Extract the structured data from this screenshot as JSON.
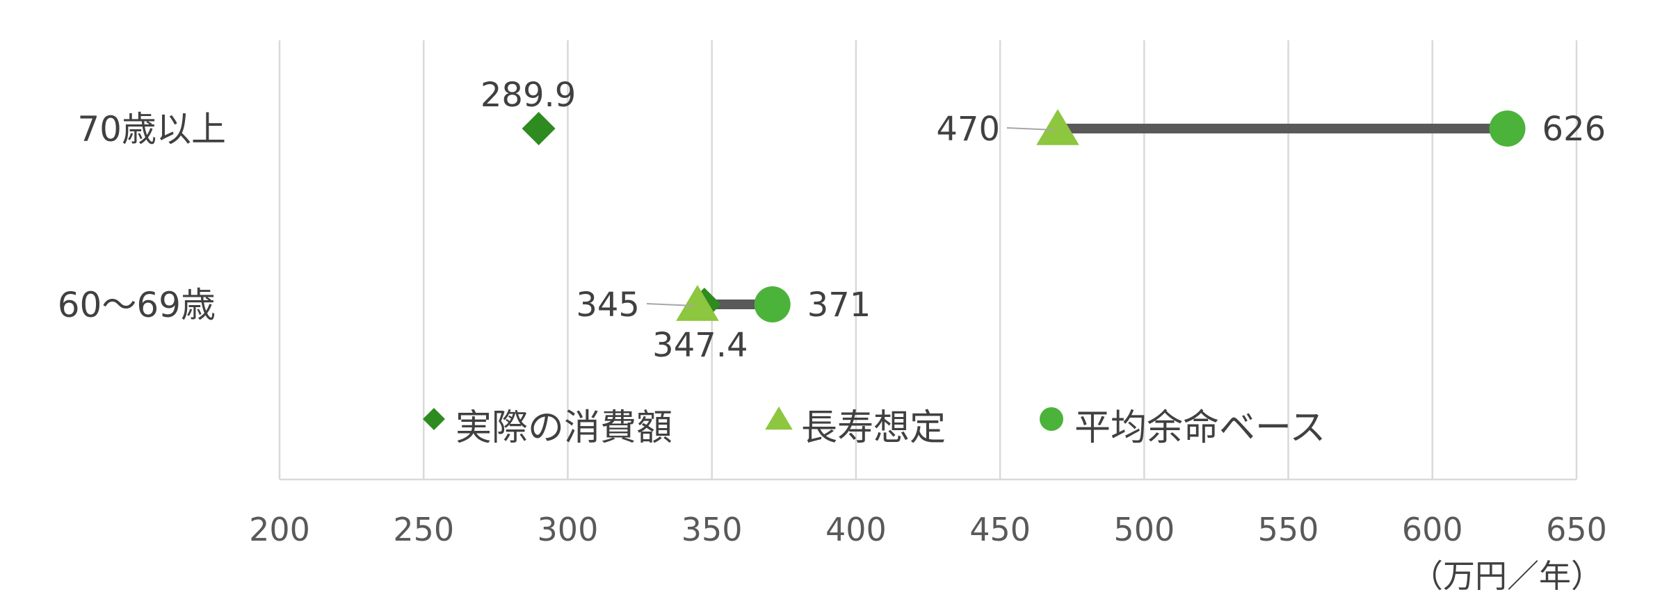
{
  "chart_data": {
    "type": "scatter",
    "title": "",
    "unit_label": "（万円／年）",
    "categories": [
      "70歳以上",
      "60～69歳"
    ],
    "xlim": [
      200,
      650
    ],
    "x_ticks": [
      200,
      250,
      300,
      350,
      400,
      450,
      500,
      550,
      600,
      650
    ],
    "grid": true,
    "legend_position": "bottom-inside",
    "series": [
      {
        "name": "実際の消費額",
        "marker": "diamond",
        "color": "#2e8b1f",
        "values": [
          289.9,
          347.4
        ],
        "labels": [
          "289.9",
          "347.4"
        ],
        "label_side": [
          "above",
          "below"
        ]
      },
      {
        "name": "長寿想定",
        "marker": "triangle",
        "color": "#8dc63f",
        "values": [
          470,
          345
        ],
        "labels": [
          "470",
          "345"
        ],
        "label_side": [
          "left",
          "left"
        ]
      },
      {
        "name": "平均余命ベース",
        "marker": "circle",
        "color": "#4bb33a",
        "values": [
          626,
          371
        ],
        "labels": [
          "626",
          "371"
        ],
        "label_side": [
          "right",
          "right"
        ]
      }
    ],
    "range_bar_color": "#595959"
  }
}
